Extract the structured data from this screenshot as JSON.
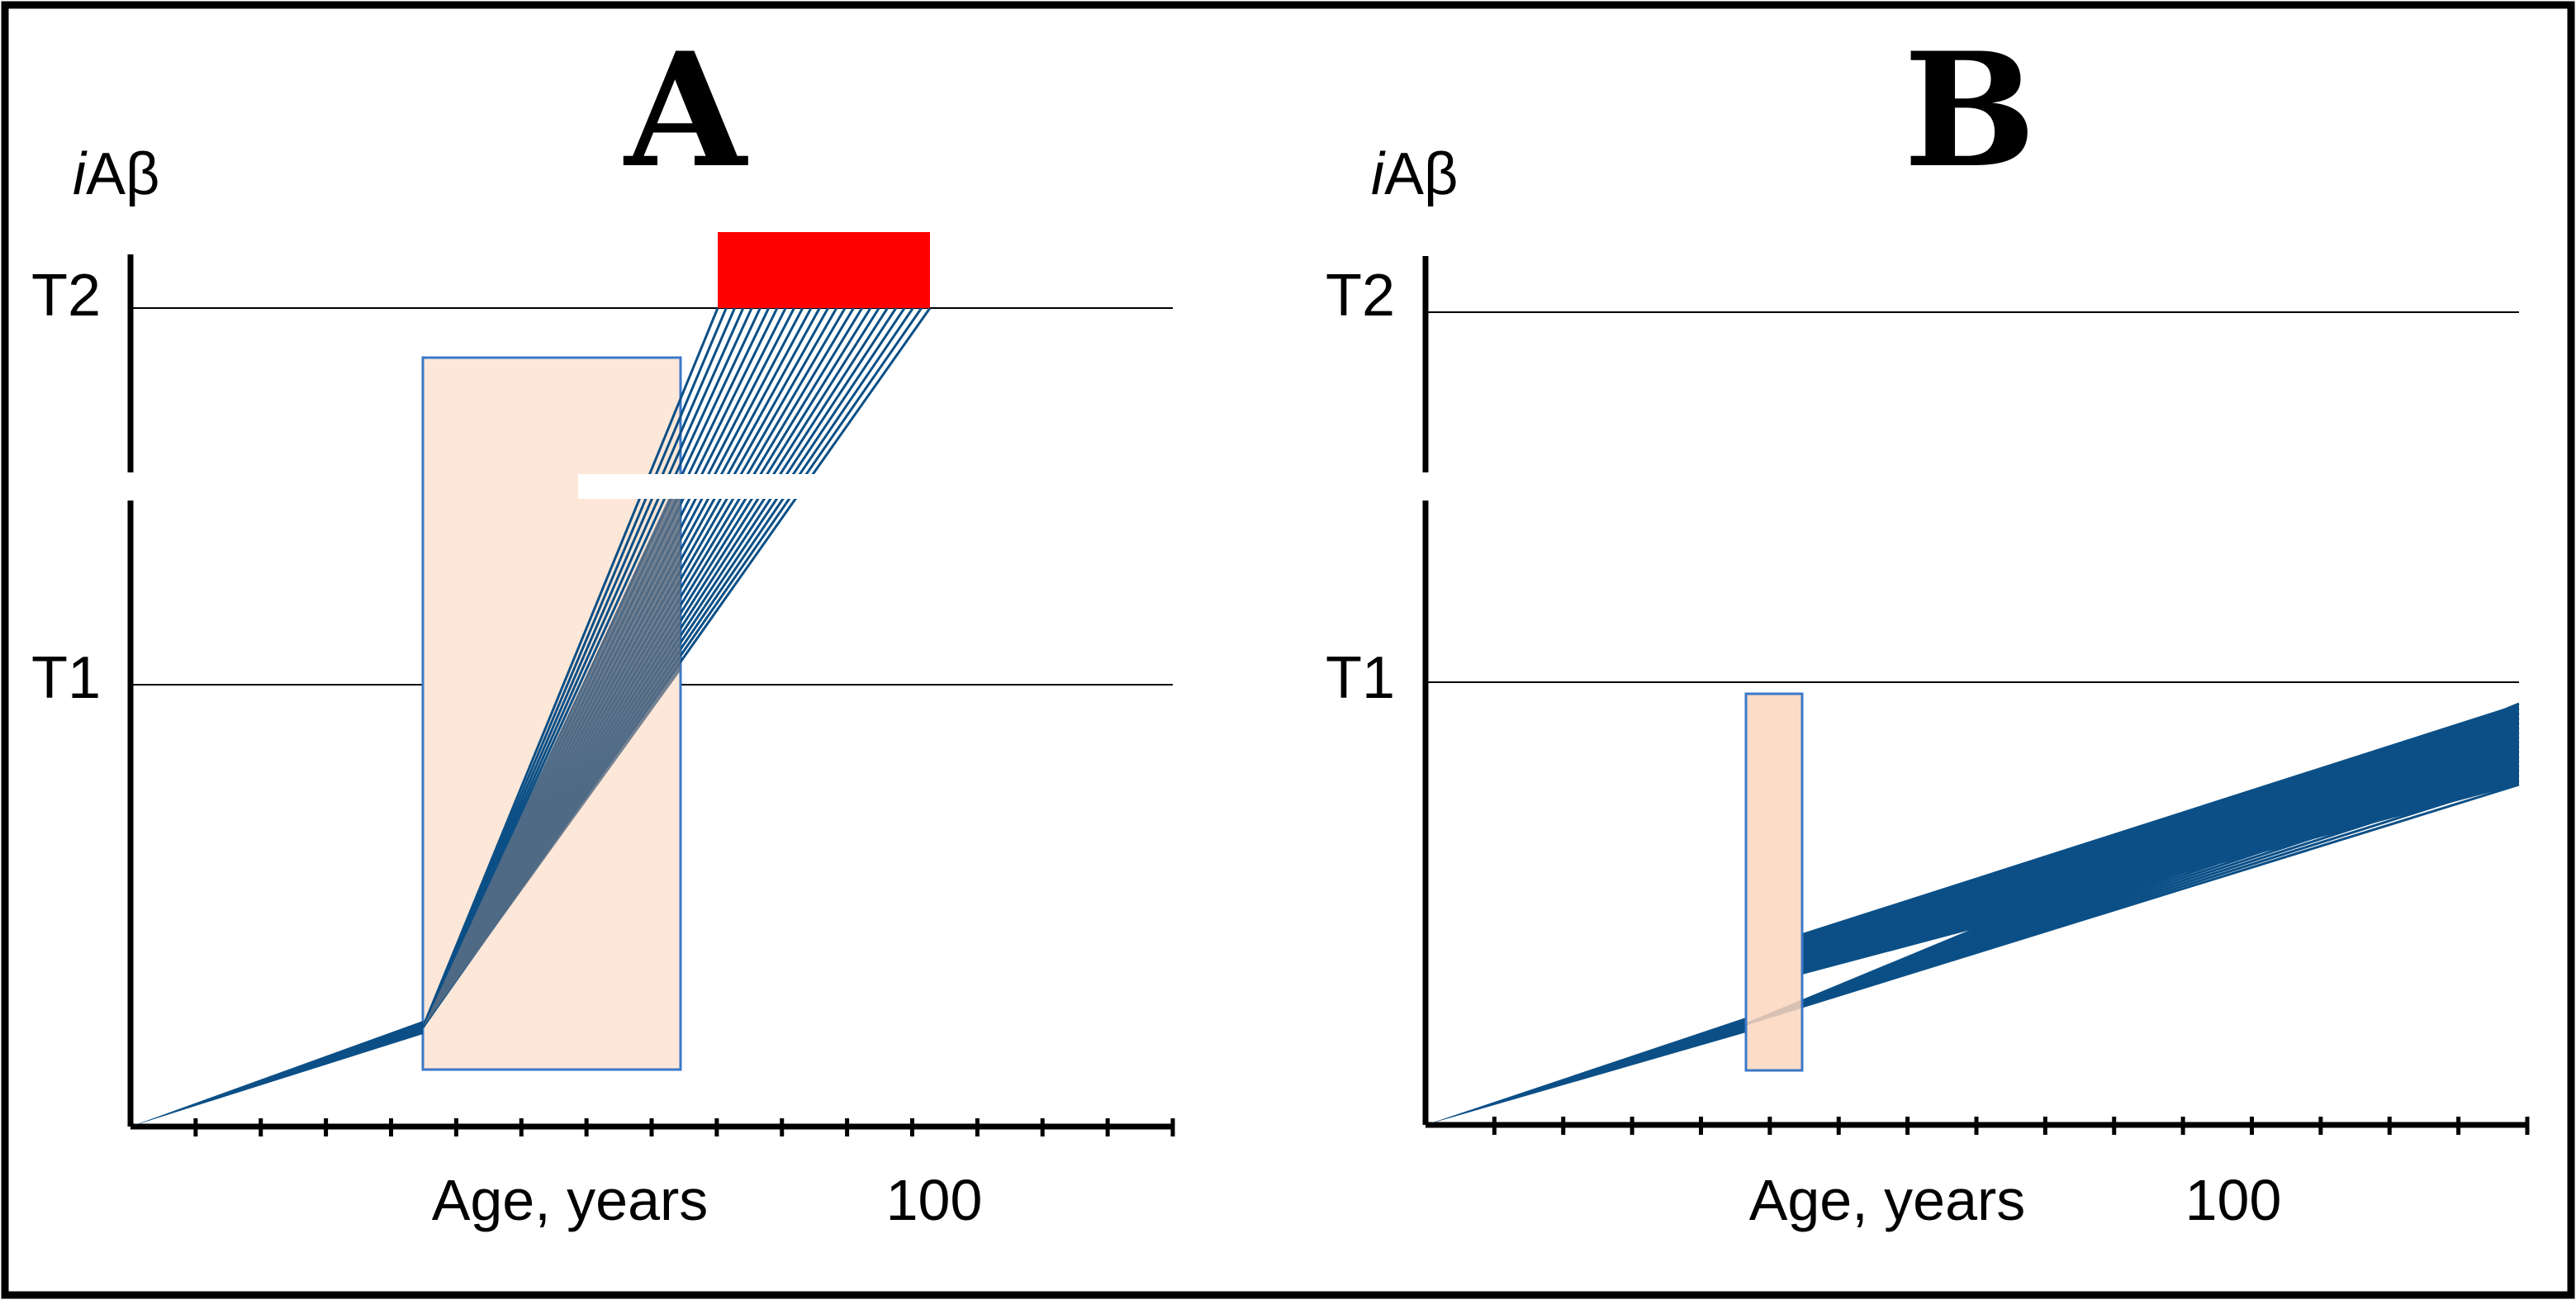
{
  "figure": {
    "panels": [
      {
        "id": "A",
        "letter": "A",
        "y_axis_label_italic": "i",
        "y_axis_label_rest": "Aβ",
        "thresholds": [
          "T2",
          "T1"
        ],
        "x_label": "Age, years",
        "x_tick_label": "100",
        "window_color": "#fde7d8",
        "window_border": "#3b78c8",
        "red_block_color": "#ff0000",
        "line_color": "#0b4f86"
      },
      {
        "id": "B",
        "letter": "B",
        "y_axis_label_italic": "i",
        "y_axis_label_rest": "Aβ",
        "thresholds": [
          "T2",
          "T1"
        ],
        "x_label": "Age, years",
        "x_tick_label": "100",
        "window_color": "#fcd6bd",
        "window_border": "#3b78c8",
        "line_color": "#0b4f86"
      }
    ]
  }
}
